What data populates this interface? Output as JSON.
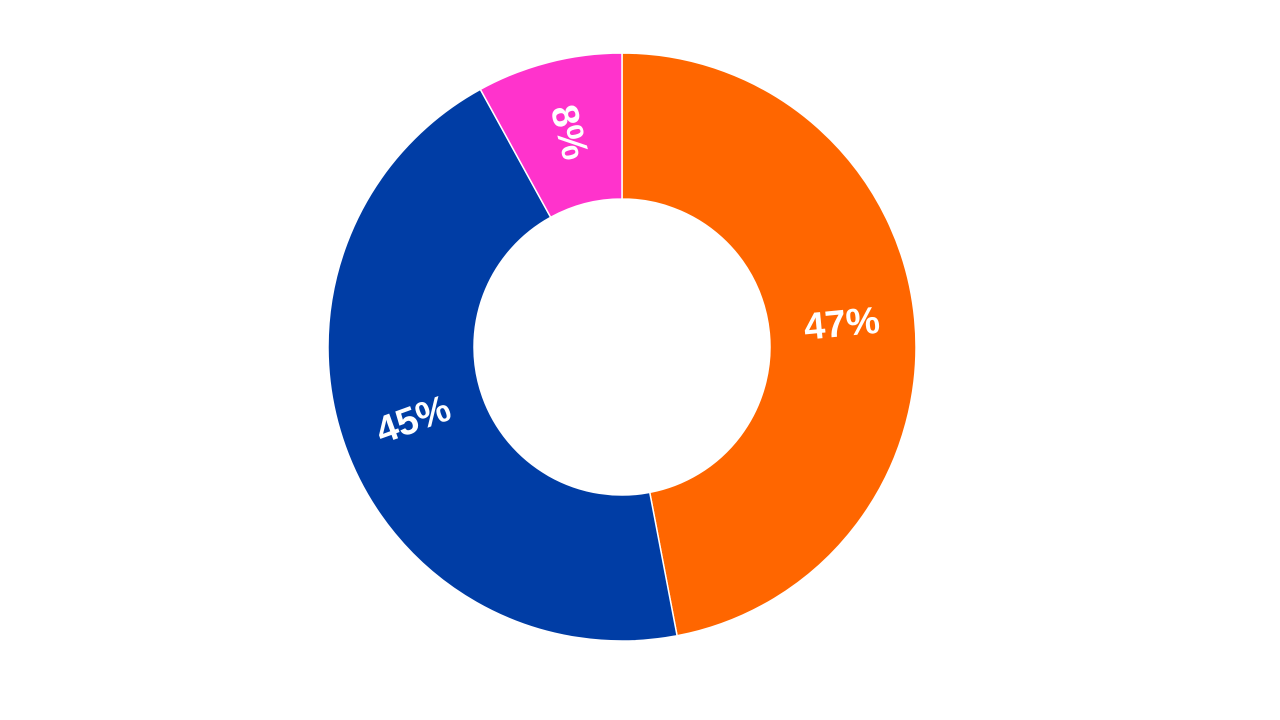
{
  "chart_data": {
    "type": "donut",
    "values": [
      47,
      45,
      8
    ],
    "value_labels": [
      "47%",
      "45%",
      "8%"
    ],
    "colors": [
      "#ff6600",
      "#003da5",
      "#ff33cc"
    ]
  }
}
